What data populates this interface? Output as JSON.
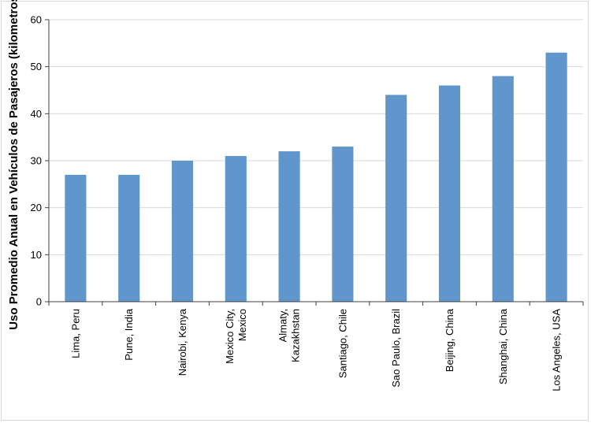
{
  "chart_data": {
    "type": "bar",
    "title": "",
    "xlabel": "",
    "ylabel": "Uso Promedio Anual en Vehículos de Pasajeros (kilometros)",
    "ylim": [
      0,
      60
    ],
    "yticks": [
      0,
      10,
      20,
      30,
      40,
      50,
      60
    ],
    "grid": true,
    "categories": [
      [
        "Lima, Peru"
      ],
      [
        "Pune, India"
      ],
      [
        "Nairobi, Kenya"
      ],
      [
        "Mexico City,",
        "Mexico"
      ],
      [
        "Almaty,",
        "Kazakhstan"
      ],
      [
        "Santiago, Chile"
      ],
      [
        "Sao Paulo, Brazil"
      ],
      [
        "Beijing, China"
      ],
      [
        "Shanghai, China"
      ],
      [
        "Los Angeles, USA"
      ]
    ],
    "values": [
      27,
      27,
      30,
      31,
      32,
      33,
      44,
      46,
      48,
      53
    ],
    "colors": {
      "bar": "#6096cc",
      "grid": "#d9d9d9",
      "axis": "#404040"
    }
  }
}
